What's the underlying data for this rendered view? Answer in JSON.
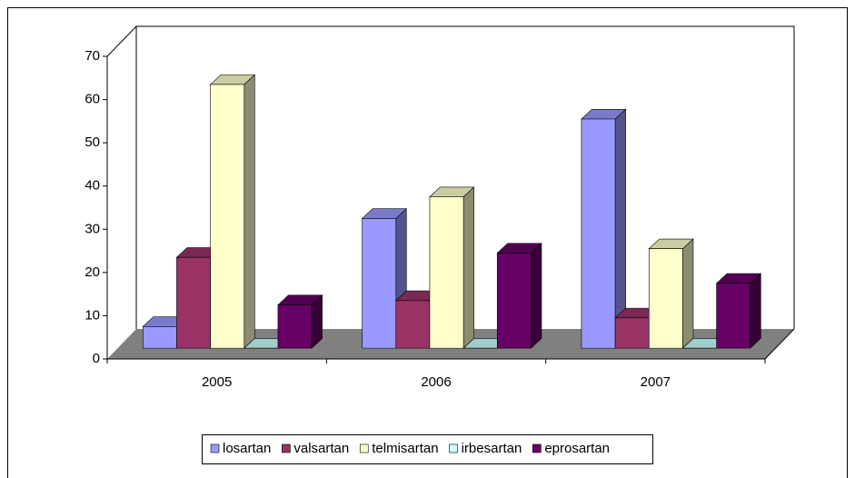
{
  "chart_data": {
    "type": "bar3d",
    "categories": [
      "2005",
      "2006",
      "2007"
    ],
    "series": [
      {
        "name": "losartan",
        "color": "#9999ff",
        "values": [
          5,
          30,
          53
        ]
      },
      {
        "name": "valsartan",
        "color": "#993366",
        "values": [
          21,
          11,
          7
        ]
      },
      {
        "name": "telmisartan",
        "color": "#ffffcc",
        "values": [
          61,
          35,
          23
        ]
      },
      {
        "name": "irbesartan",
        "color": "#ccffff",
        "values": [
          0,
          0,
          0
        ]
      },
      {
        "name": "eprosartan",
        "color": "#660066",
        "values": [
          10,
          22,
          15
        ]
      }
    ],
    "ylim": [
      0,
      70
    ],
    "yticks": [
      0,
      10,
      20,
      30,
      40,
      50,
      60,
      70
    ],
    "legend": "bottom"
  }
}
